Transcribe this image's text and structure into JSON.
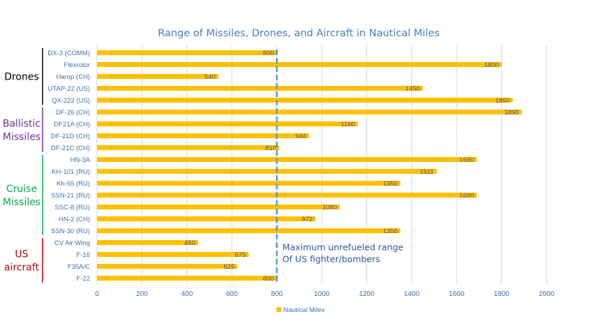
{
  "chart_data": {
    "type": "bar",
    "orientation": "horizontal",
    "title": "Range of Missiles, Drones, and Aircraft in Nautical Miles",
    "categories": [
      "DX-3 (COMM)",
      "Flexrotor",
      "Harop (CH)",
      "UTAP-22 (US)",
      "QX-222 (US)",
      "DF-26 (CH)",
      "DF21A (CH)",
      "DF-21D (CH)",
      "DF-21C (CH)",
      "HN-3A",
      "KH-101 (RU)",
      "Kh-55 (RU)",
      "SSN-21 (RU)",
      "SSC-8 (RU)",
      "HN-2 (CH)",
      "SSN-30 (RU)",
      "CV Air Wing",
      "F-16",
      "F35A/C",
      "F-22"
    ],
    "series": [
      {
        "name": "Nautical Miles",
        "values": [
          800,
          1800,
          540,
          1450,
          1850,
          1890,
          1160,
          944,
          810,
          1690,
          1511,
          1350,
          1690,
          1080,
          972,
          1350,
          450,
          675,
          625,
          800
        ]
      }
    ],
    "x_ticks": [
      "0",
      "200",
      "400",
      "600",
      "800",
      "1000",
      "1200",
      "1400",
      "1600",
      "1800",
      "2000"
    ],
    "xlim": [
      0,
      2000
    ],
    "grid": true,
    "legend_position": "bottom",
    "reference_line": {
      "value": 800,
      "label_lines": [
        "Maximum unrefueled range",
        "Of US fighter/bombers"
      ]
    },
    "groups": [
      {
        "label_lines": [
          "Drones"
        ],
        "from": 0,
        "to": 4,
        "color": "#000000"
      },
      {
        "label_lines": [
          "Ballistic",
          "Missiles"
        ],
        "from": 5,
        "to": 8,
        "color": "#7030a0"
      },
      {
        "label_lines": [
          "Cruise",
          "Missiles"
        ],
        "from": 9,
        "to": 15,
        "color": "#00b050"
      },
      {
        "label_lines": [
          "US",
          "aircraft"
        ],
        "from": 16,
        "to": 19,
        "color": "#c00000"
      }
    ],
    "colors": {
      "bar": "#ffc000",
      "reference": "#5b9bd5",
      "title": "#4a7fc1",
      "grid": "#d9d9d9",
      "axis_text": "#3f6fb0"
    }
  }
}
